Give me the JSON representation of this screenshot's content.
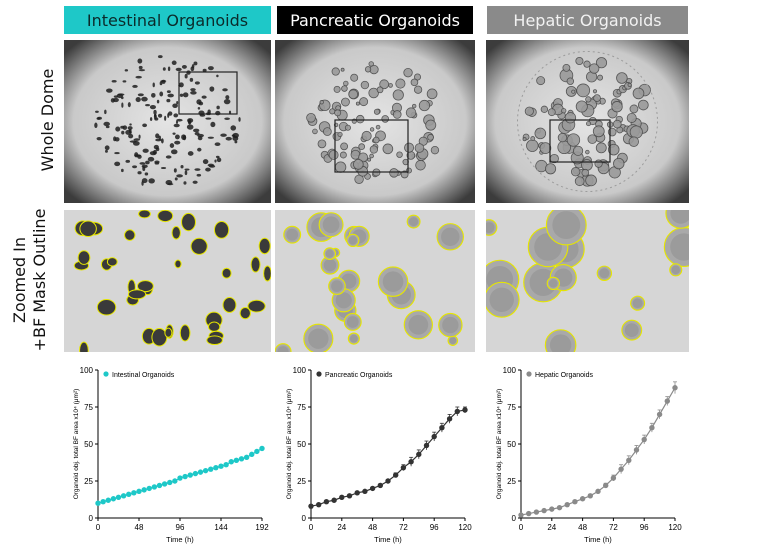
{
  "headers": {
    "intestinal": "Intestinal Organoids",
    "pancreatic": "Pancreatic Organoids",
    "hepatic": "Hepatic Organoids"
  },
  "row_labels": {
    "whole_dome": "Whole Dome",
    "zoomed_line1": "Zoomed In",
    "zoomed_line2": "+BF Mask Outline"
  },
  "colors": {
    "intestinal": "#1ec8c8",
    "pancreatic": "#333333",
    "hepatic": "#8a8a8a",
    "mask_outline": "#e6e600"
  },
  "chart_data": [
    {
      "type": "line",
      "title": "",
      "xlabel": "Time (h)",
      "ylabel": "Organoid obj. total BF area x10⁴ (μm²)",
      "xlim": [
        0,
        192
      ],
      "ylim": [
        0,
        100
      ],
      "xticks": [
        0,
        48,
        96,
        144,
        192
      ],
      "yticks": [
        0,
        25,
        50,
        75,
        100
      ],
      "legend_position": "top-left",
      "series": [
        {
          "name": "Intestinal Organoids",
          "color": "#1ec8c8",
          "x": [
            0,
            6,
            12,
            18,
            24,
            30,
            36,
            42,
            48,
            54,
            60,
            66,
            72,
            78,
            84,
            90,
            96,
            102,
            108,
            114,
            120,
            126,
            132,
            138,
            144,
            150,
            156,
            162,
            168,
            174,
            180,
            186,
            192
          ],
          "y": [
            10,
            11,
            12,
            13,
            14,
            15,
            16,
            17,
            18,
            19,
            20,
            21,
            22,
            23,
            24,
            25,
            27,
            28,
            29,
            30,
            31,
            32,
            33,
            34,
            35,
            36,
            38,
            39,
            40,
            41,
            43,
            45,
            47
          ]
        }
      ]
    },
    {
      "type": "line",
      "title": "",
      "xlabel": "Time (h)",
      "ylabel": "Organoid obj. total BF area x10⁴ (μm²)",
      "xlim": [
        0,
        120
      ],
      "ylim": [
        0,
        100
      ],
      "xticks": [
        0,
        24,
        48,
        72,
        96,
        120
      ],
      "yticks": [
        0,
        25,
        50,
        75,
        100
      ],
      "legend_position": "top-left",
      "series": [
        {
          "name": "Pancreatic Organoids",
          "color": "#333333",
          "x": [
            0,
            6,
            12,
            18,
            24,
            30,
            36,
            42,
            48,
            54,
            60,
            66,
            72,
            78,
            84,
            90,
            96,
            102,
            108,
            114,
            120
          ],
          "y": [
            8,
            9,
            11,
            12,
            14,
            15,
            17,
            18,
            20,
            22,
            25,
            29,
            34,
            38,
            43,
            49,
            55,
            61,
            67,
            72,
            73
          ],
          "error": [
            0.5,
            0.5,
            0.5,
            0.5,
            0.5,
            0.5,
            0.5,
            0.5,
            0.5,
            1,
            1,
            1.5,
            2,
            3,
            3,
            3,
            3,
            3,
            3,
            3,
            2
          ]
        }
      ]
    },
    {
      "type": "line",
      "title": "",
      "xlabel": "Time (h)",
      "ylabel": "Organoid obj. total BF area x10⁴ (μm²)",
      "xlim": [
        0,
        120
      ],
      "ylim": [
        0,
        100
      ],
      "xticks": [
        0,
        24,
        48,
        72,
        96,
        120
      ],
      "yticks": [
        0,
        25,
        50,
        75,
        100
      ],
      "legend_position": "top-left",
      "series": [
        {
          "name": "Hepatic Organoids",
          "color": "#8a8a8a",
          "x": [
            0,
            6,
            12,
            18,
            24,
            30,
            36,
            42,
            48,
            54,
            60,
            66,
            72,
            78,
            84,
            90,
            96,
            102,
            108,
            114,
            120
          ],
          "y": [
            2,
            3,
            4,
            5,
            6,
            7,
            9,
            11,
            13,
            15,
            18,
            22,
            27,
            33,
            39,
            46,
            53,
            61,
            70,
            79,
            88
          ],
          "error": [
            0.5,
            0.5,
            0.5,
            0.5,
            0.5,
            0.5,
            0.5,
            0.5,
            0.5,
            1,
            1,
            1.5,
            2,
            3,
            3,
            3,
            3,
            3,
            3,
            3,
            4
          ]
        }
      ]
    }
  ]
}
